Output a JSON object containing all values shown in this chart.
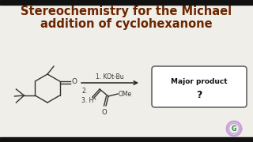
{
  "title_line1": "Stereochemistry for the Michael",
  "title_line2": "addition of cyclohexanone",
  "title_color": "#6B2500",
  "title_fontsize": 10.5,
  "bg_color": "#F0EEE8",
  "reaction_label1": "1. KOt-Bu",
  "reaction_label2": "2.",
  "reaction_label3": "3. H⁺",
  "ome_label": "OMe",
  "box_text_line1": "Major product",
  "box_text_line2": "?",
  "box_color": "#FFFFFF",
  "box_edge_color": "#666666",
  "arrow_color": "#222222",
  "struct_color": "#333333",
  "bar_color": "#111111"
}
